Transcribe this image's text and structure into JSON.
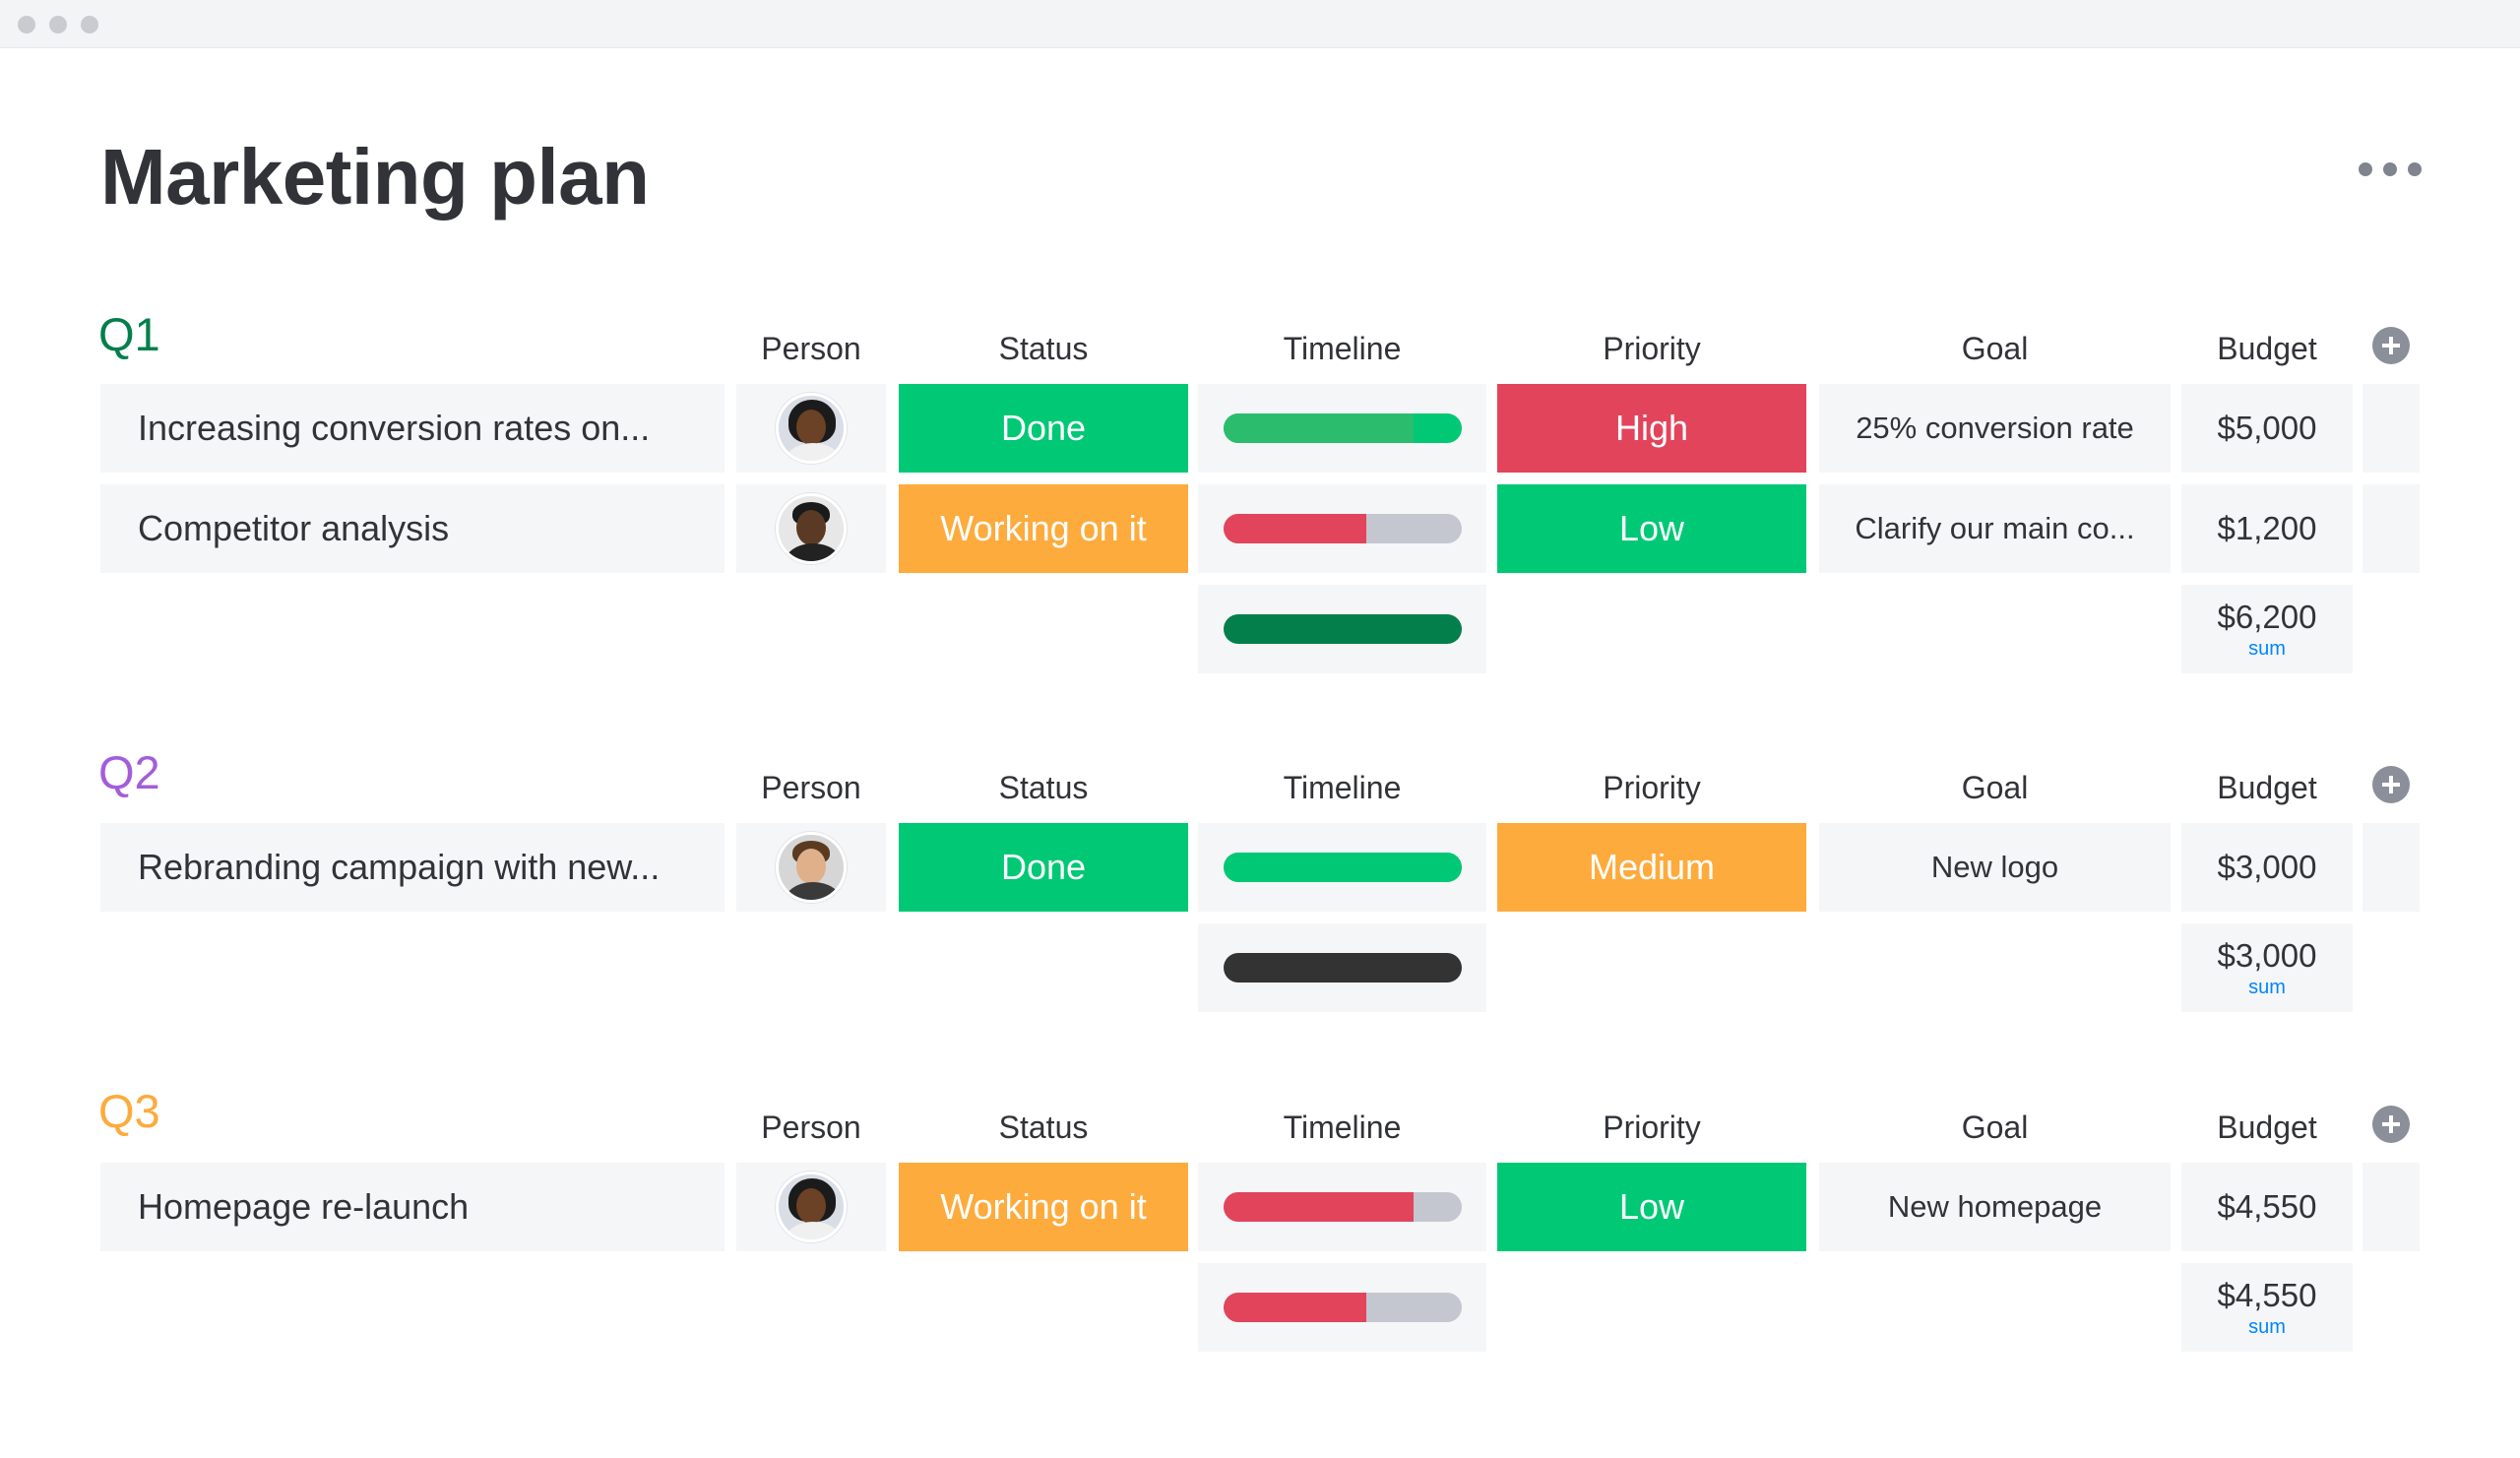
{
  "window": {
    "title": "Marketing plan"
  },
  "header": {
    "title": "Marketing plan",
    "more_icon": "more-horizontal-icon"
  },
  "columns": {
    "person": "Person",
    "status": "Status",
    "timeline": "Timeline",
    "priority": "Priority",
    "goal": "Goal",
    "budget": "Budget"
  },
  "colors": {
    "done": "#00c875",
    "working": "#fdab3d",
    "stuck": "#e2445c",
    "high": "#e2445c",
    "low": "#00c875",
    "medium": "#fdab3d",
    "q1": "#037f4c",
    "q2": "#a25ddc",
    "q3": "#fdab3d"
  },
  "groups": [
    {
      "title": "Q1",
      "items": [
        {
          "name": "Increasing conversion rates on...",
          "person": "avatar-woman-glasses",
          "status": "Done",
          "timeline_progress": 0.8,
          "timeline_color": "#00c875",
          "priority": "High",
          "goal": "25% conversion rate",
          "budget": "$5,000"
        },
        {
          "name": "Competitor analysis",
          "person": "avatar-man-smiling",
          "status": "Working on it",
          "timeline_progress": 0.6,
          "timeline_color": "#e2445c",
          "priority": "Low",
          "goal": "Clarify our main co...",
          "budget": "$1,200"
        }
      ],
      "summary": {
        "timeline_color": "#037f4c",
        "sum": "$6,200",
        "sum_label": "sum"
      }
    },
    {
      "title": "Q2",
      "items": [
        {
          "name": "Rebranding campaign with new...",
          "person": "avatar-man-beard",
          "status": "Done",
          "timeline_progress": 1.0,
          "timeline_color": "#00c875",
          "priority": "Medium",
          "goal": "New logo",
          "budget": "$3,000"
        }
      ],
      "summary": {
        "timeline_color": "#333333",
        "sum": "$3,000",
        "sum_label": "sum"
      }
    },
    {
      "title": "Q3",
      "items": [
        {
          "name": "Homepage re-launch",
          "person": "avatar-woman-glasses",
          "status": "Working on it",
          "timeline_progress": 0.8,
          "timeline_color": "#e2445c",
          "priority": "Low",
          "goal": "New homepage",
          "budget": "$4,550"
        }
      ],
      "summary": {
        "timeline_color": "#e2445c",
        "timeline_progress": 0.6,
        "sum": "$4,550",
        "sum_label": "sum"
      }
    }
  ]
}
